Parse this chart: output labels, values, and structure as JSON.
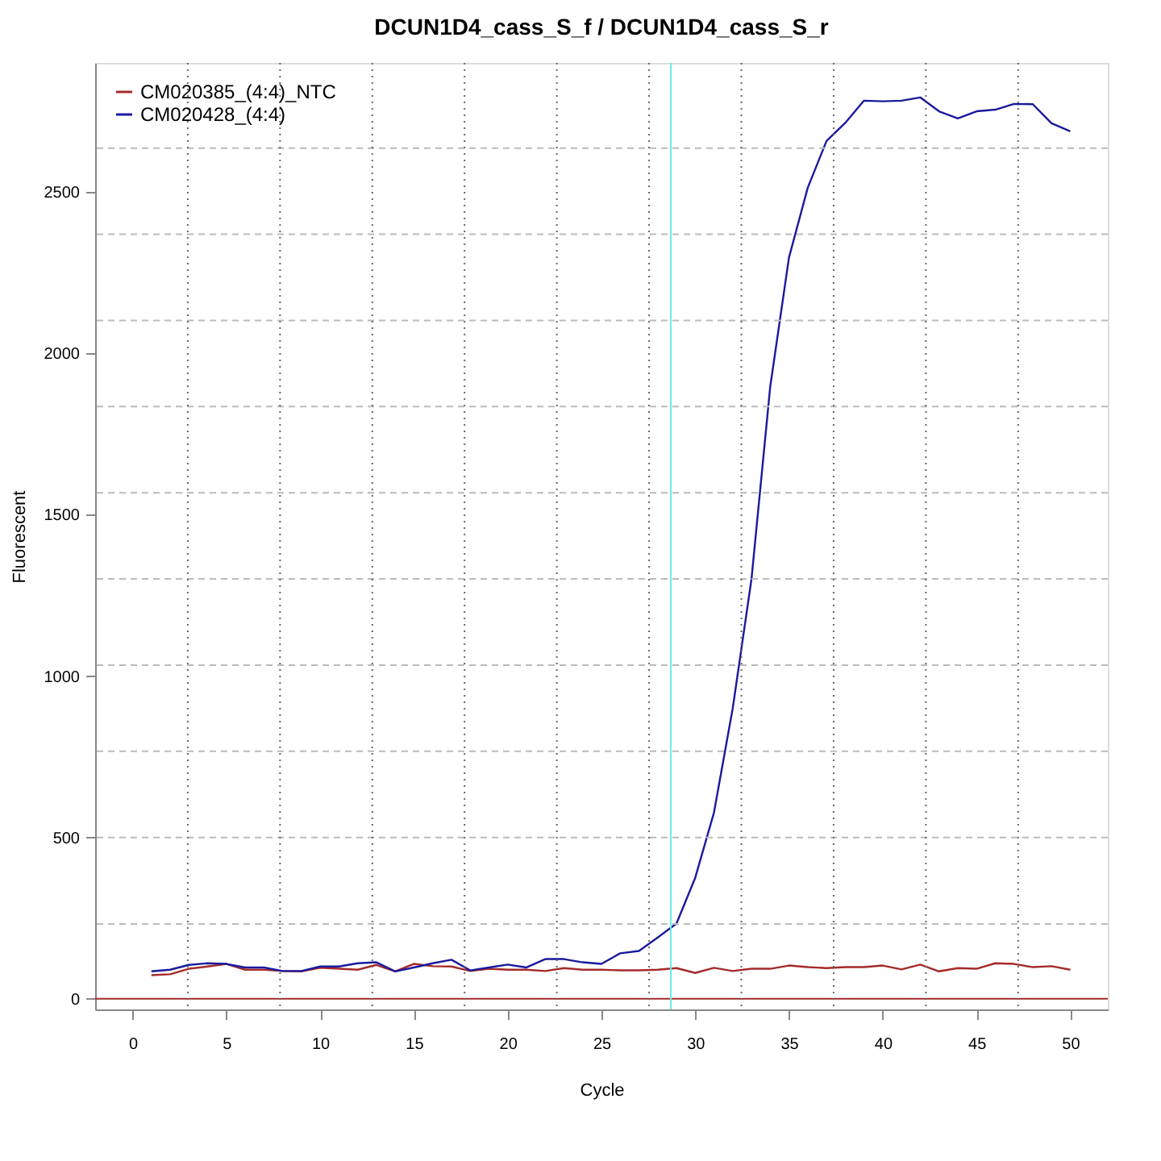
{
  "chart_data": {
    "type": "line",
    "title": "DCUN1D4_cass_S_f / DCUN1D4_cass_S_r",
    "xlabel": "Cycle",
    "ylabel": "Fluorescent",
    "x": [
      1,
      2,
      3,
      4,
      5,
      6,
      7,
      8,
      9,
      10,
      11,
      12,
      13,
      14,
      15,
      16,
      17,
      18,
      19,
      20,
      21,
      22,
      23,
      24,
      25,
      26,
      27,
      28,
      29,
      30,
      31,
      32,
      33,
      34,
      35,
      36,
      37,
      38,
      39,
      40,
      41,
      42,
      43,
      44,
      45,
      46,
      47,
      48,
      49,
      50
    ],
    "series": [
      {
        "name": "CM020385_(4:4)_NTC",
        "color": "#a52a2a",
        "values": [
          73,
          76,
          93,
          100,
          108,
          90,
          90,
          86,
          85,
          96,
          93,
          90,
          105,
          85,
          108,
          101,
          100,
          86,
          93,
          90,
          90,
          86,
          95,
          90,
          90,
          88,
          88,
          90,
          95,
          80,
          96,
          86,
          93,
          93,
          103,
          98,
          95,
          98,
          98,
          103,
          91,
          106,
          85,
          95,
          93,
          110,
          108,
          98,
          101,
          90
        ]
      },
      {
        "name": "CM020428_(4:4)",
        "color": "#1a1a9e",
        "values": [
          85,
          90,
          105,
          110,
          108,
          97,
          97,
          86,
          86,
          100,
          100,
          110,
          113,
          85,
          97,
          110,
          121,
          88,
          97,
          106,
          97,
          123,
          123,
          113,
          108,
          141,
          148,
          190,
          233,
          375,
          577,
          900,
          1300,
          1897,
          2297,
          2513,
          2658,
          2714,
          2783,
          2781,
          2783,
          2793,
          2750,
          2728,
          2750,
          2755,
          2773,
          2772,
          2713,
          2688
        ]
      }
    ],
    "xlim": [
      -2,
      52
    ],
    "ylim": [
      -33,
      2900
    ],
    "xticks": [
      0,
      5,
      10,
      15,
      20,
      25,
      30,
      35,
      40,
      45,
      50
    ],
    "yticks": [
      0,
      500,
      1000,
      1500,
      2000,
      2500
    ],
    "ref_lines": [
      {
        "axis": "y",
        "value": 0,
        "color": "#a52a2a",
        "line_style": "solid"
      },
      {
        "axis": "x",
        "value": 28.7,
        "color": "#66eeee",
        "line_style": "solid"
      },
      {
        "axis": "y",
        "value": 232,
        "color": "#bbbbbb",
        "line_style": "dashed"
      },
      {
        "axis": "y",
        "value": 500,
        "color": "#bbbbbb",
        "line_style": "dashed"
      },
      {
        "axis": "y",
        "value": 767,
        "color": "#bbbbbb",
        "line_style": "dashed"
      },
      {
        "axis": "y",
        "value": 1034,
        "color": "#bbbbbb",
        "line_style": "dashed"
      },
      {
        "axis": "y",
        "value": 1301,
        "color": "#bbbbbb",
        "line_style": "dashed"
      },
      {
        "axis": "y",
        "value": 1568,
        "color": "#bbbbbb",
        "line_style": "dashed"
      },
      {
        "axis": "y",
        "value": 1835,
        "color": "#bbbbbb",
        "line_style": "dashed"
      },
      {
        "axis": "y",
        "value": 2102,
        "color": "#bbbbbb",
        "line_style": "dashed"
      },
      {
        "axis": "y",
        "value": 2369,
        "color": "#bbbbbb",
        "line_style": "dashed"
      },
      {
        "axis": "y",
        "value": 2636,
        "color": "#bbbbbb",
        "line_style": "dashed"
      },
      {
        "axis": "x",
        "value": 2.94,
        "color": "#666666",
        "line_style": "dotted"
      },
      {
        "axis": "x",
        "value": 7.86,
        "color": "#666666",
        "line_style": "dotted"
      },
      {
        "axis": "x",
        "value": 12.78,
        "color": "#666666",
        "line_style": "dotted"
      },
      {
        "axis": "x",
        "value": 17.7,
        "color": "#666666",
        "line_style": "dotted"
      },
      {
        "axis": "x",
        "value": 22.62,
        "color": "#666666",
        "line_style": "dotted"
      },
      {
        "axis": "x",
        "value": 27.54,
        "color": "#666666",
        "line_style": "dotted"
      },
      {
        "axis": "x",
        "value": 32.46,
        "color": "#666666",
        "line_style": "dotted"
      },
      {
        "axis": "x",
        "value": 37.38,
        "color": "#666666",
        "line_style": "dotted"
      },
      {
        "axis": "x",
        "value": 42.3,
        "color": "#666666",
        "line_style": "dotted"
      },
      {
        "axis": "x",
        "value": 47.22,
        "color": "#666666",
        "line_style": "dotted"
      }
    ],
    "legend": "top left",
    "grid": false,
    "marker": "none",
    "line_style": "solid"
  }
}
